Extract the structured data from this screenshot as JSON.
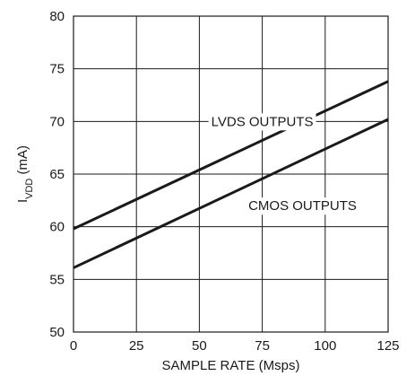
{
  "chart_data": {
    "type": "line",
    "title": "",
    "xlabel": "SAMPLE RATE (Msps)",
    "ylabel_main": "I",
    "ylabel_sub": "VDD",
    "ylabel_unit": " (mA)",
    "xlim": [
      0,
      125
    ],
    "ylim": [
      50,
      80
    ],
    "xticks": [
      "0",
      "25",
      "50",
      "75",
      "100",
      "125"
    ],
    "yticks": [
      "50",
      "55",
      "60",
      "65",
      "70",
      "75",
      "80"
    ],
    "grid": true,
    "series": [
      {
        "name": "LVDS OUTPUTS",
        "x": [
          0,
          125
        ],
        "y": [
          59.8,
          73.8
        ],
        "label_x": 75,
        "label_y": 70
      },
      {
        "name": "CMOS OUTPUTS",
        "x": [
          0,
          125
        ],
        "y": [
          56.1,
          70.2
        ],
        "label_x": 91,
        "label_y": 62
      }
    ]
  }
}
